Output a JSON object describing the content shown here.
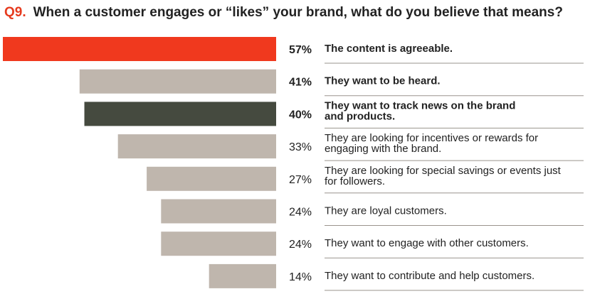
{
  "question": {
    "number": "Q9.",
    "text": "When a customer engages or “likes” your brand, what do you believe that means?"
  },
  "colors": {
    "accent": "#f0391e",
    "dark": "#454a3f",
    "neutral": "#bfb6ad",
    "question_number": "#e63b1f"
  },
  "chart_data": {
    "type": "bar",
    "orientation": "horizontal",
    "title": "When a customer engages or “likes” your brand, what do you believe that means?",
    "xlim": [
      0,
      57
    ],
    "categories": [
      "The content is agreeable.",
      "They want to be heard.",
      "They want to track news on the brand and products.",
      "They are looking for incentives or rewards for engaging with the brand.",
      "They are looking for special savings or events just for followers.",
      "They are loyal customers.",
      "They want to engage with other customers.",
      "They want to contribute and help customers."
    ],
    "values": [
      57,
      41,
      40,
      33,
      27,
      24,
      24,
      14
    ],
    "value_labels": [
      "57%",
      "41%",
      "40%",
      "33%",
      "27%",
      "24%",
      "24%",
      "14%"
    ],
    "label_lines": [
      [
        "The content is agreeable."
      ],
      [
        "They want to be heard."
      ],
      [
        "They want to track news on the brand",
        "and products."
      ],
      [
        "They are looking for incentives or rewards for",
        "engaging with the brand."
      ],
      [
        "They are looking for special savings or events just",
        "for followers."
      ],
      [
        "They are loyal customers."
      ],
      [
        "They want to engage with other customers."
      ],
      [
        "They want to contribute and help customers."
      ]
    ],
    "bar_colors": [
      "accent",
      "neutral",
      "dark",
      "neutral",
      "neutral",
      "neutral",
      "neutral",
      "neutral"
    ],
    "bold": [
      true,
      true,
      true,
      false,
      false,
      false,
      false,
      false
    ]
  }
}
